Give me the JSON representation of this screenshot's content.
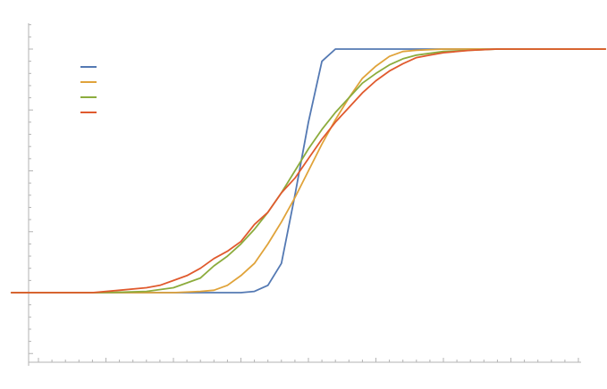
{
  "chart_data": {
    "type": "line",
    "title": "",
    "xlabel": "",
    "ylabel": "",
    "xlim": [
      -1,
      1
    ],
    "ylim": [
      -0.3,
      1.15
    ],
    "grid": false,
    "legend_position": "top-left",
    "series": [
      {
        "color": "#5479b3",
        "x": [
          -1.1,
          -0.3,
          -0.25,
          -0.2,
          -0.15,
          -0.1,
          -0.05,
          0.0,
          0.05,
          0.1,
          0.15,
          0.2,
          0.25,
          0.3,
          1.1
        ],
        "y": [
          0.0,
          0.0,
          0.0,
          0.005,
          0.03,
          0.12,
          0.4,
          0.7,
          0.95,
          1.0,
          1.0,
          1.0,
          1.0,
          1.0,
          1.0
        ]
      },
      {
        "color": "#e0a33a",
        "x": [
          -1.1,
          -0.7,
          -0.6,
          -0.5,
          -0.4,
          -0.35,
          -0.3,
          -0.25,
          -0.2,
          -0.15,
          -0.1,
          -0.05,
          0.0,
          0.05,
          0.1,
          0.15,
          0.2,
          0.25,
          0.3,
          0.35,
          0.4,
          0.5,
          0.6,
          1.1
        ],
        "y": [
          0.0,
          0.0,
          0.0,
          0.0,
          0.005,
          0.01,
          0.03,
          0.07,
          0.12,
          0.2,
          0.29,
          0.39,
          0.5,
          0.61,
          0.71,
          0.8,
          0.88,
          0.93,
          0.97,
          0.99,
          0.995,
          1.0,
          1.0,
          1.0
        ]
      },
      {
        "color": "#8cac3d",
        "x": [
          -1.1,
          -0.8,
          -0.7,
          -0.6,
          -0.5,
          -0.4,
          -0.35,
          -0.3,
          -0.25,
          -0.2,
          -0.15,
          -0.1,
          -0.05,
          0.0,
          0.05,
          0.1,
          0.15,
          0.2,
          0.25,
          0.3,
          0.35,
          0.4,
          0.5,
          0.6,
          0.7,
          1.1
        ],
        "y": [
          0.0,
          0.0,
          0.002,
          0.005,
          0.02,
          0.06,
          0.11,
          0.15,
          0.2,
          0.26,
          0.33,
          0.41,
          0.5,
          0.59,
          0.67,
          0.74,
          0.8,
          0.86,
          0.9,
          0.935,
          0.96,
          0.975,
          0.99,
          0.995,
          1.0,
          1.0
        ]
      },
      {
        "color": "#e05a2e",
        "x": [
          -1.1,
          -0.8,
          -0.7,
          -0.6,
          -0.55,
          -0.5,
          -0.45,
          -0.4,
          -0.35,
          -0.3,
          -0.25,
          -0.2,
          -0.15,
          -0.1,
          -0.05,
          0.0,
          0.05,
          0.1,
          0.15,
          0.2,
          0.25,
          0.3,
          0.35,
          0.4,
          0.45,
          0.5,
          0.6,
          0.7,
          0.8,
          0.9,
          1.1
        ],
        "y": [
          0.0,
          0.0,
          0.01,
          0.02,
          0.03,
          0.05,
          0.07,
          0.1,
          0.14,
          0.17,
          0.21,
          0.28,
          0.33,
          0.41,
          0.47,
          0.55,
          0.63,
          0.7,
          0.76,
          0.82,
          0.87,
          0.91,
          0.94,
          0.965,
          0.975,
          0.985,
          0.995,
          1.0,
          1.0,
          1.0,
          1.0
        ]
      }
    ]
  }
}
